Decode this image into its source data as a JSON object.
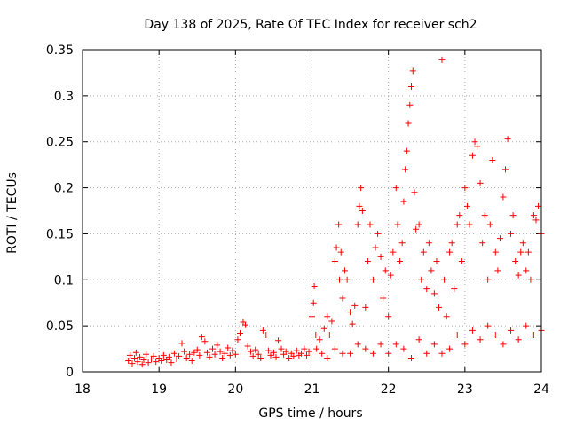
{
  "chart_data": {
    "type": "scatter",
    "title": "Day 138 of 2025, Rate Of TEC Index for receiver sch2",
    "xlabel": "GPS time / hours",
    "ylabel": "ROTI / TECUs",
    "xlim": [
      18,
      24
    ],
    "ylim": [
      0,
      0.35
    ],
    "x_ticks": [
      "18",
      "19",
      "20",
      "21",
      "22",
      "23",
      "24"
    ],
    "y_ticks": [
      "0",
      "0.05",
      "0.1",
      "0.15",
      "0.2",
      "0.25",
      "0.3",
      "0.35"
    ],
    "x_tick_values": [
      18,
      19,
      20,
      21,
      22,
      23,
      24
    ],
    "y_tick_values": [
      0,
      0.05,
      0.1,
      0.15,
      0.2,
      0.25,
      0.3,
      0.35
    ],
    "grid": true,
    "marker": "+",
    "marker_color": "#ff0000",
    "series": [
      {
        "points": [
          [
            18.6,
            0.012
          ],
          [
            18.62,
            0.018
          ],
          [
            18.65,
            0.009
          ],
          [
            18.68,
            0.015
          ],
          [
            18.7,
            0.021
          ],
          [
            18.72,
            0.011
          ],
          [
            18.75,
            0.016
          ],
          [
            18.78,
            0.008
          ],
          [
            18.8,
            0.013
          ],
          [
            18.83,
            0.019
          ],
          [
            18.86,
            0.01
          ],
          [
            18.9,
            0.014
          ],
          [
            18.93,
            0.017
          ],
          [
            18.96,
            0.011
          ],
          [
            19.0,
            0.015
          ],
          [
            19.03,
            0.012
          ],
          [
            19.06,
            0.018
          ],
          [
            19.1,
            0.013
          ],
          [
            19.13,
            0.016
          ],
          [
            19.16,
            0.01
          ],
          [
            19.2,
            0.02
          ],
          [
            19.23,
            0.014
          ],
          [
            19.26,
            0.017
          ],
          [
            19.3,
            0.031
          ],
          [
            19.33,
            0.022
          ],
          [
            19.36,
            0.015
          ],
          [
            19.4,
            0.019
          ],
          [
            19.43,
            0.012
          ],
          [
            19.46,
            0.021
          ],
          [
            19.5,
            0.024
          ],
          [
            19.53,
            0.018
          ],
          [
            19.56,
            0.038
          ],
          [
            19.6,
            0.033
          ],
          [
            19.63,
            0.021
          ],
          [
            19.66,
            0.016
          ],
          [
            19.7,
            0.025
          ],
          [
            19.73,
            0.019
          ],
          [
            19.76,
            0.029
          ],
          [
            19.8,
            0.022
          ],
          [
            19.83,
            0.015
          ],
          [
            19.86,
            0.02
          ],
          [
            19.9,
            0.026
          ],
          [
            19.93,
            0.018
          ],
          [
            19.96,
            0.023
          ],
          [
            20.0,
            0.019
          ],
          [
            20.03,
            0.035
          ],
          [
            20.06,
            0.042
          ],
          [
            20.1,
            0.054
          ],
          [
            20.13,
            0.051
          ],
          [
            20.16,
            0.028
          ],
          [
            20.2,
            0.022
          ],
          [
            20.23,
            0.017
          ],
          [
            20.26,
            0.024
          ],
          [
            20.3,
            0.019
          ],
          [
            20.33,
            0.015
          ],
          [
            20.36,
            0.045
          ],
          [
            20.4,
            0.04
          ],
          [
            20.43,
            0.023
          ],
          [
            20.46,
            0.018
          ],
          [
            20.5,
            0.021
          ],
          [
            20.53,
            0.016
          ],
          [
            20.56,
            0.034
          ],
          [
            20.6,
            0.025
          ],
          [
            20.63,
            0.019
          ],
          [
            20.66,
            0.022
          ],
          [
            20.7,
            0.015
          ],
          [
            20.73,
            0.02
          ],
          [
            20.76,
            0.017
          ],
          [
            20.8,
            0.023
          ],
          [
            20.83,
            0.018
          ],
          [
            20.86,
            0.02
          ],
          [
            20.9,
            0.025
          ],
          [
            20.93,
            0.018
          ],
          [
            20.96,
            0.022
          ],
          [
            21.0,
            0.06
          ],
          [
            21.02,
            0.075
          ],
          [
            21.03,
            0.093
          ],
          [
            21.05,
            0.04
          ],
          [
            21.06,
            0.025
          ],
          [
            21.1,
            0.035
          ],
          [
            21.13,
            0.02
          ],
          [
            21.16,
            0.047
          ],
          [
            21.2,
            0.06
          ],
          [
            21.23,
            0.04
          ],
          [
            21.26,
            0.055
          ],
          [
            21.3,
            0.12
          ],
          [
            21.32,
            0.135
          ],
          [
            21.35,
            0.16
          ],
          [
            21.36,
            0.1
          ],
          [
            21.38,
            0.13
          ],
          [
            21.4,
            0.08
          ],
          [
            21.43,
            0.11
          ],
          [
            21.46,
            0.1
          ],
          [
            21.5,
            0.065
          ],
          [
            21.53,
            0.052
          ],
          [
            21.56,
            0.072
          ],
          [
            21.6,
            0.16
          ],
          [
            21.62,
            0.18
          ],
          [
            21.64,
            0.2
          ],
          [
            21.66,
            0.175
          ],
          [
            21.7,
            0.07
          ],
          [
            21.73,
            0.12
          ],
          [
            21.76,
            0.16
          ],
          [
            21.8,
            0.1
          ],
          [
            21.83,
            0.135
          ],
          [
            21.86,
            0.15
          ],
          [
            21.9,
            0.125
          ],
          [
            21.93,
            0.08
          ],
          [
            21.96,
            0.11
          ],
          [
            22.0,
            0.06
          ],
          [
            22.03,
            0.105
          ],
          [
            22.06,
            0.13
          ],
          [
            22.1,
            0.2
          ],
          [
            22.12,
            0.16
          ],
          [
            22.15,
            0.12
          ],
          [
            22.18,
            0.14
          ],
          [
            22.2,
            0.185
          ],
          [
            22.22,
            0.22
          ],
          [
            22.24,
            0.24
          ],
          [
            22.26,
            0.27
          ],
          [
            22.28,
            0.29
          ],
          [
            22.3,
            0.31
          ],
          [
            22.32,
            0.327
          ],
          [
            22.34,
            0.195
          ],
          [
            22.36,
            0.155
          ],
          [
            22.4,
            0.16
          ],
          [
            22.43,
            0.1
          ],
          [
            22.46,
            0.13
          ],
          [
            22.5,
            0.09
          ],
          [
            22.53,
            0.14
          ],
          [
            22.56,
            0.11
          ],
          [
            22.6,
            0.085
          ],
          [
            22.63,
            0.12
          ],
          [
            22.66,
            0.07
          ],
          [
            22.7,
            0.339
          ],
          [
            22.73,
            0.1
          ],
          [
            22.76,
            0.06
          ],
          [
            22.8,
            0.13
          ],
          [
            22.83,
            0.14
          ],
          [
            22.86,
            0.09
          ],
          [
            22.9,
            0.16
          ],
          [
            22.93,
            0.17
          ],
          [
            22.96,
            0.12
          ],
          [
            23.0,
            0.2
          ],
          [
            23.03,
            0.18
          ],
          [
            23.06,
            0.16
          ],
          [
            23.1,
            0.235
          ],
          [
            23.13,
            0.25
          ],
          [
            23.16,
            0.245
          ],
          [
            23.2,
            0.205
          ],
          [
            23.23,
            0.14
          ],
          [
            23.26,
            0.17
          ],
          [
            23.3,
            0.1
          ],
          [
            23.33,
            0.16
          ],
          [
            23.36,
            0.23
          ],
          [
            23.4,
            0.13
          ],
          [
            23.43,
            0.11
          ],
          [
            23.46,
            0.145
          ],
          [
            23.5,
            0.19
          ],
          [
            23.53,
            0.22
          ],
          [
            23.56,
            0.253
          ],
          [
            23.6,
            0.15
          ],
          [
            23.63,
            0.17
          ],
          [
            23.66,
            0.12
          ],
          [
            23.7,
            0.105
          ],
          [
            23.73,
            0.13
          ],
          [
            23.76,
            0.14
          ],
          [
            23.8,
            0.11
          ],
          [
            23.83,
            0.13
          ],
          [
            23.86,
            0.1
          ],
          [
            23.9,
            0.17
          ],
          [
            23.93,
            0.165
          ],
          [
            23.96,
            0.18
          ],
          [
            24.0,
            0.15
          ],
          [
            22.0,
            0.02
          ],
          [
            22.1,
            0.03
          ],
          [
            22.2,
            0.025
          ],
          [
            22.3,
            0.015
          ],
          [
            22.4,
            0.035
          ],
          [
            22.5,
            0.02
          ],
          [
            22.6,
            0.03
          ],
          [
            22.7,
            0.02
          ],
          [
            22.8,
            0.025
          ],
          [
            22.9,
            0.04
          ],
          [
            23.0,
            0.03
          ],
          [
            23.1,
            0.045
          ],
          [
            23.2,
            0.035
          ],
          [
            23.3,
            0.05
          ],
          [
            23.4,
            0.04
          ],
          [
            23.5,
            0.03
          ],
          [
            23.6,
            0.045
          ],
          [
            23.7,
            0.035
          ],
          [
            23.8,
            0.05
          ],
          [
            23.9,
            0.04
          ],
          [
            24.0,
            0.045
          ],
          [
            21.5,
            0.02
          ],
          [
            21.6,
            0.03
          ],
          [
            21.7,
            0.025
          ],
          [
            21.8,
            0.02
          ],
          [
            21.9,
            0.03
          ],
          [
            21.2,
            0.015
          ],
          [
            21.3,
            0.025
          ],
          [
            21.4,
            0.02
          ]
        ]
      }
    ]
  }
}
